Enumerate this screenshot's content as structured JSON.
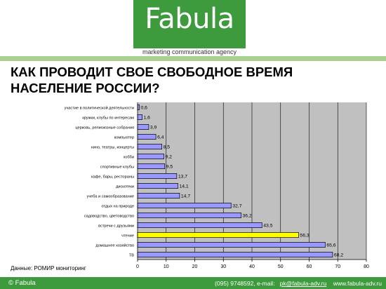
{
  "header": {
    "logo_text": "Fabula",
    "logo_subtitle": "marketing communication agency"
  },
  "title_line1": "КАК ПРОВОДИТ СВОЕ СВОБОДНОЕ ВРЕМЯ",
  "title_line2": "НАСЕЛЕНИЕ РОССИИ?",
  "source": "Данные: РОМИР мониторинг",
  "footer": {
    "copyright": "© Fabula",
    "phone": "(095) 9748592, e-mail:",
    "email": "pk@fabula-adv.ru",
    "site": "www.fabula-adv.ru"
  },
  "colors": {
    "brand_green": "#3d9a3d",
    "light_green": "#a9d18e",
    "plot_bg": "#c0c0c0",
    "bar": "#9999ff",
    "highlight_bar": "#ffff00"
  },
  "chart_data": {
    "type": "bar",
    "orientation": "horizontal",
    "categories": [
      "участие в политической деятельности",
      "кружки, клубы по интересам",
      "церковь, религиозные собрания",
      "компьютер",
      "кино, театры, концерты",
      "хобби",
      "спортивные клубы",
      "кафе, бары, рестораны",
      "дискотеки",
      "учеба и самообразование",
      "отдых на природе",
      "садоводство, цветоводство",
      "встречи с друзьями",
      "чтение",
      "домашнее хозяйство",
      "ТВ"
    ],
    "values": [
      0.6,
      1.6,
      3.9,
      6.4,
      8.5,
      9.2,
      9.5,
      13.7,
      14.1,
      14.7,
      32.7,
      36.2,
      43.5,
      56.3,
      65.6,
      68.2
    ],
    "value_labels": [
      "0,6",
      "1,6",
      "3,9",
      "6,4",
      "8,5",
      "9,2",
      "9,5",
      "13,7",
      "14,1",
      "14,7",
      "32,7",
      "36,2",
      "43,5",
      "56,3",
      "65,6",
      "68,2"
    ],
    "highlight_category": "чтение",
    "xlim": [
      0,
      80
    ],
    "xticks": [
      0,
      10,
      20,
      30,
      40,
      50,
      60,
      70,
      80
    ],
    "grid": true,
    "legend": "none",
    "title": "КАК ПРОВОДИТ СВОЕ СВОБОДНОЕ ВРЕМЯ НАСЕЛЕНИЕ РОССИИ?"
  }
}
